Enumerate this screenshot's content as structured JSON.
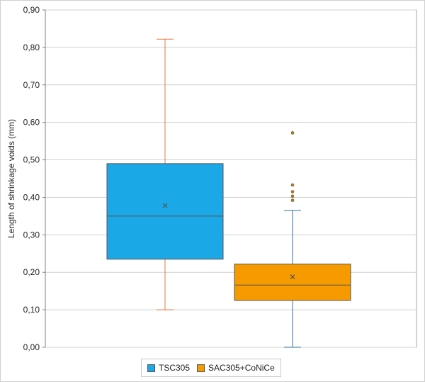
{
  "chart_data": {
    "type": "box",
    "title": "",
    "xlabel": "",
    "ylabel": "Length of shrinkage voids (mm)",
    "ylim": [
      0,
      0.9
    ],
    "yticks": [
      "0,00",
      "0,10",
      "0,20",
      "0,30",
      "0,40",
      "0,50",
      "0,60",
      "0,70",
      "0,80",
      "0,90"
    ],
    "grid": true,
    "legend_position": "bottom",
    "series": [
      {
        "name": "TSC305",
        "color": "#1aa9e6",
        "whisker_color": "#e07b39",
        "min": 0.1,
        "q1": 0.235,
        "median": 0.35,
        "q3": 0.49,
        "max": 0.822,
        "mean": 0.378,
        "outliers": []
      },
      {
        "name": "SAC305+CoNiCe",
        "color": "#f59b00",
        "whisker_color": "#2e6f9e",
        "min": 0.0,
        "q1": 0.125,
        "median": 0.166,
        "q3": 0.222,
        "max": 0.365,
        "mean": 0.188,
        "outliers": [
          0.392,
          0.403,
          0.415,
          0.433,
          0.572
        ]
      }
    ]
  }
}
